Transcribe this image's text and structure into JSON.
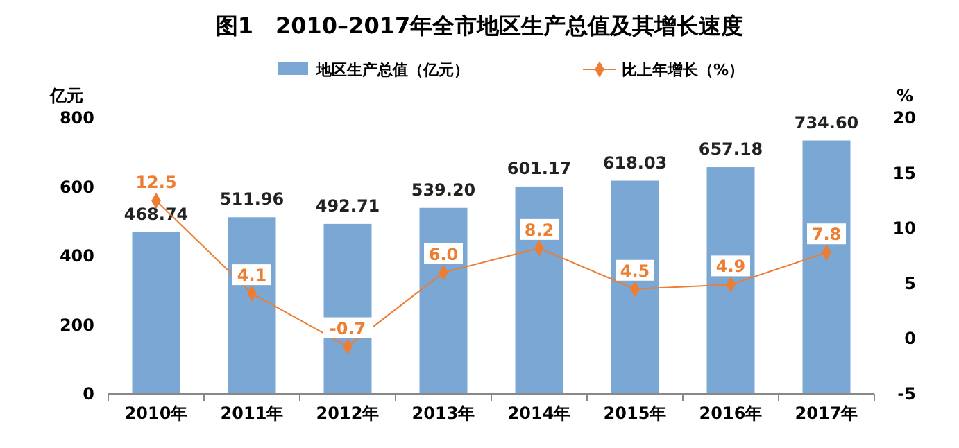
{
  "chart_data": {
    "type": "bar",
    "title": "图1　2010–2017年全市地区生产总值及其增长速度",
    "ylabel": "亿元",
    "y2label": "%",
    "categories": [
      "2010年",
      "2011年",
      "2012年",
      "2013年",
      "2014年",
      "2015年",
      "2016年",
      "2017年"
    ],
    "series": [
      {
        "name": "地区生产总值（亿元）",
        "color": "#7ba7d5",
        "values": [
          468.74,
          511.96,
          492.71,
          539.2,
          601.17,
          618.03,
          657.18,
          734.6
        ],
        "value_labels": [
          "468.74",
          "511.96",
          "492.71",
          "539.20",
          "601.17",
          "618.03",
          "657.18",
          "734.60"
        ]
      },
      {
        "name": "比上年增长（%）",
        "type": "line",
        "axis": "y2",
        "color": "#ed7d31",
        "marker": "diamond",
        "values": [
          12.5,
          4.1,
          -0.7,
          6.0,
          8.2,
          4.5,
          4.9,
          7.8
        ],
        "value_labels": [
          "12.5",
          "4.1",
          "-0.7",
          "6.0",
          "8.2",
          "4.5",
          "4.9",
          "7.8"
        ]
      }
    ],
    "ylim": [
      0,
      800
    ],
    "yticks": [
      0,
      200,
      400,
      600,
      800
    ],
    "y2lim": [
      -5,
      20
    ],
    "y2ticks": [
      -5,
      0,
      5,
      10,
      15,
      20
    ],
    "grid": false,
    "legend": "top"
  }
}
